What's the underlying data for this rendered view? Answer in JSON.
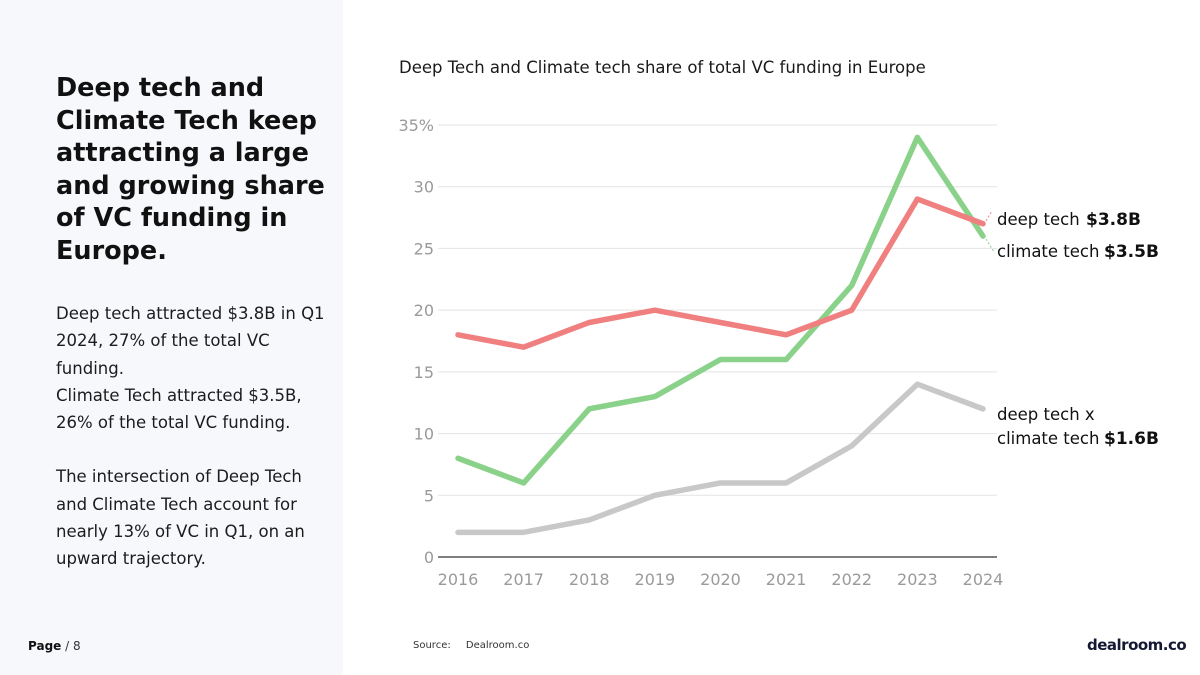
{
  "page": {
    "label": "Page",
    "number": "/ 8"
  },
  "headline": "Deep tech and Climate Tech keep attracting a large and growing share of VC funding in Europe.",
  "body": {
    "p1": "Deep tech attracted $3.8B in Q1 2024, 27% of the total VC funding.",
    "p2": "Climate Tech attracted $3.5B, 26% of the total VC funding.",
    "p3": "The intersection of Deep Tech and Climate Tech account for nearly 13% of VC in Q1, on an upward trajectory."
  },
  "source": {
    "label": "Source:",
    "value": "Dealroom.co"
  },
  "logo": "dealroom.co",
  "chart_data": {
    "type": "line",
    "title": "Deep Tech and Climate tech share of total VC funding in Europe",
    "x": [
      "2016",
      "2017",
      "2018",
      "2019",
      "2020",
      "2021",
      "2022",
      "2023",
      "2024"
    ],
    "ylim": [
      0,
      35
    ],
    "yticks": [
      "0",
      "5",
      "10",
      "15",
      "20",
      "25",
      "30",
      "35%"
    ],
    "grid": true,
    "series": [
      {
        "name": "deep tech",
        "amount": "$3.8B",
        "color": "#f08080",
        "values": [
          18,
          17,
          19,
          20,
          19,
          18,
          20,
          29,
          27
        ]
      },
      {
        "name": "climate tech",
        "amount": "$3.5B",
        "color": "#8ad18a",
        "values": [
          8,
          6,
          12,
          13,
          16,
          16,
          22,
          34,
          26
        ]
      },
      {
        "name": "deep tech x climate tech",
        "name_line1": "deep tech x",
        "name_line2": "climate tech",
        "amount": "$1.6B",
        "color": "#c8c8c8",
        "values": [
          2,
          2,
          3,
          5,
          6,
          6,
          9,
          14,
          12
        ]
      }
    ]
  }
}
